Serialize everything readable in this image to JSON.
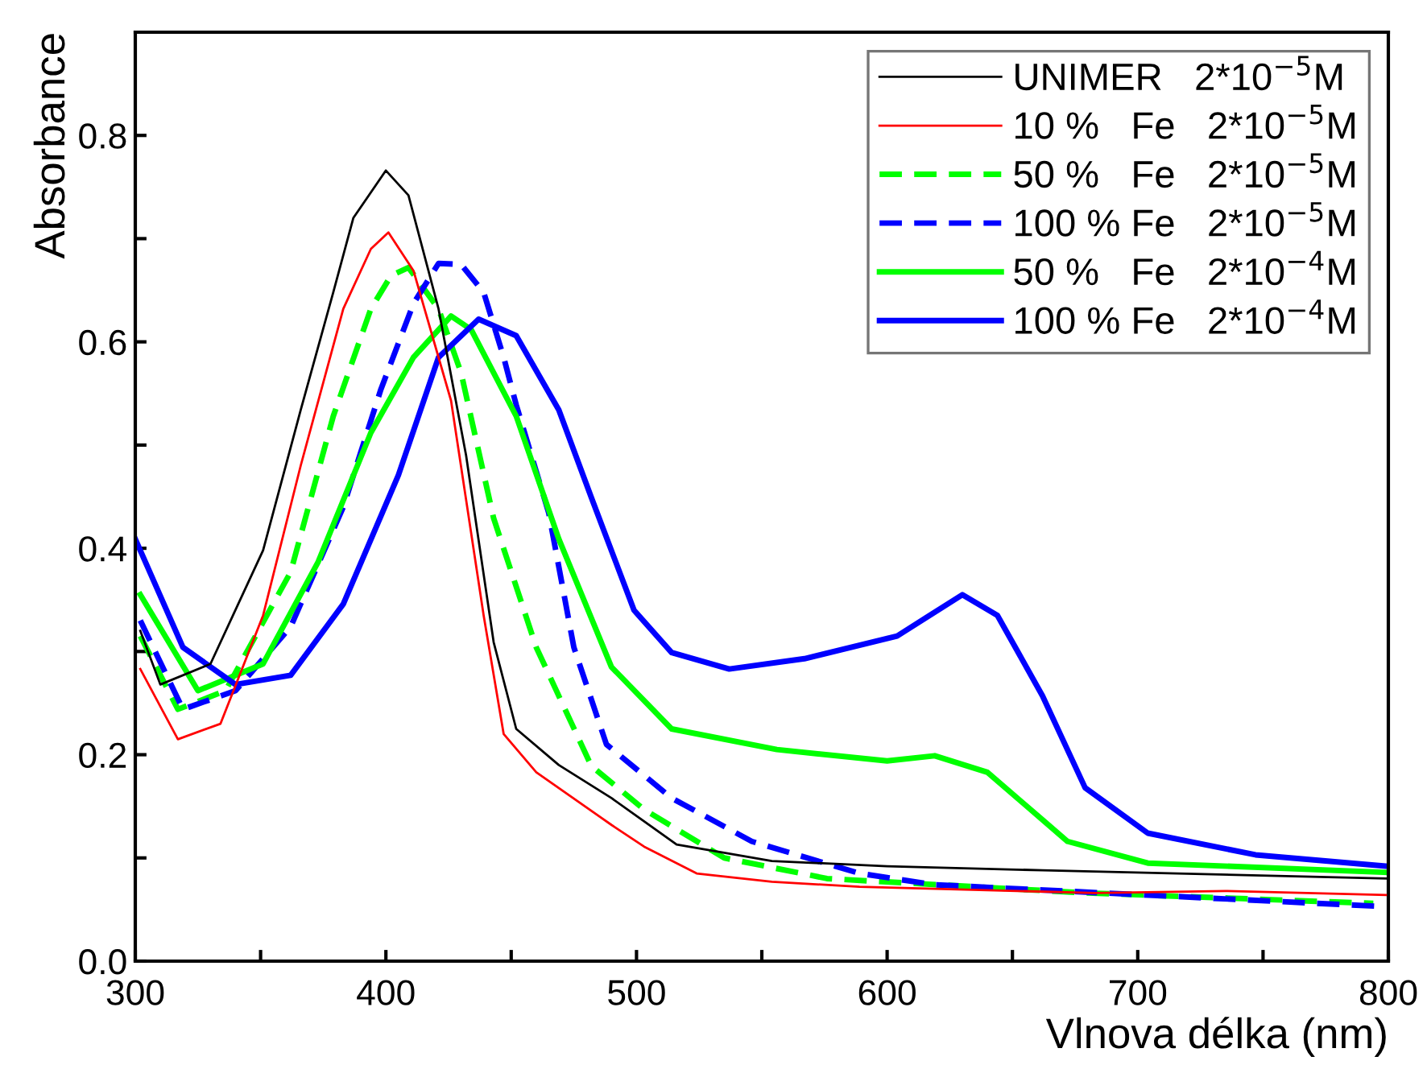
{
  "chart_data": {
    "type": "line",
    "xlabel": "Vlnova délka (nm)",
    "ylabel": "Absorbance",
    "xlim": [
      300,
      800
    ],
    "ylim": [
      0,
      0.9
    ],
    "xticks": [
      300,
      {
        "value": 350,
        "label": null
      },
      400,
      {
        "value": 450,
        "label": null
      },
      500,
      {
        "value": 550,
        "label": null
      },
      600,
      {
        "value": 650,
        "label": null
      },
      700,
      {
        "value": 750,
        "label": null
      },
      800
    ],
    "yticks": [
      {
        "value": 0,
        "label": "0.0"
      },
      {
        "value": 0.1,
        "label": null
      },
      {
        "value": 0.2,
        "label": "0.2"
      },
      {
        "value": 0.3,
        "label": null
      },
      {
        "value": 0.4,
        "label": "0.4"
      },
      {
        "value": 0.5,
        "label": null
      },
      {
        "value": 0.6,
        "label": "0.6"
      },
      {
        "value": 0.7,
        "label": null
      },
      {
        "value": 0.8,
        "label": "0.8"
      }
    ],
    "grid": false,
    "legend": "top right",
    "marker": "none",
    "series": [
      {
        "name": "UNIMER   2*10$^{−5}$M",
        "color": "#000000",
        "line_style": "solid",
        "x": [
          302,
          310,
          330,
          351,
          366,
          379,
          387,
          400,
          409,
          421,
          432,
          443,
          452,
          469,
          490,
          516,
          554,
          600,
          662,
          799
        ],
        "values": [
          0.32,
          0.268,
          0.288,
          0.398,
          0.534,
          0.648,
          0.72,
          0.766,
          0.742,
          0.632,
          0.49,
          0.309,
          0.225,
          0.19,
          0.158,
          0.113,
          0.097,
          0.092,
          0.088,
          0.08
        ]
      },
      {
        "name": "10 %   Fe   2*10$^{−5}$M",
        "color": "#ff0000",
        "line_style": "solid",
        "x": [
          302,
          317,
          334,
          351,
          366,
          383,
          394,
          401,
          411,
          426,
          439,
          447,
          460,
          490,
          503,
          524,
          554,
          589,
          683,
          735,
          799
        ],
        "values": [
          0.283,
          0.215,
          0.23,
          0.335,
          0.48,
          0.632,
          0.69,
          0.706,
          0.669,
          0.543,
          0.335,
          0.22,
          0.183,
          0.132,
          0.111,
          0.085,
          0.077,
          0.072,
          0.066,
          0.068,
          0.064
        ]
      },
      {
        "name": "50 %   Fe   2*10$^{−5}$M",
        "color": "#00ff00",
        "line_style": "dashed",
        "x": [
          302,
          317,
          336,
          362,
          379,
          394,
          402,
          409,
          421,
          430,
          443,
          460,
          482,
          503,
          535,
          576,
          680,
          794
        ],
        "values": [
          0.315,
          0.244,
          0.262,
          0.377,
          0.528,
          0.632,
          0.664,
          0.672,
          0.632,
          0.57,
          0.429,
          0.304,
          0.189,
          0.147,
          0.1,
          0.08,
          0.066,
          0.056
        ]
      },
      {
        "name": "100 % Fe   2*10$^{−5}$M",
        "color": "#0000ff",
        "line_style": "dashed",
        "x": [
          302,
          319,
          340,
          362,
          383,
          398,
          411,
          421,
          430,
          439,
          447,
          452,
          465,
          475,
          488,
          514,
          546,
          589,
          619,
          797
        ],
        "values": [
          0.33,
          0.244,
          0.262,
          0.324,
          0.44,
          0.554,
          0.637,
          0.676,
          0.675,
          0.648,
          0.585,
          0.539,
          0.434,
          0.304,
          0.21,
          0.158,
          0.116,
          0.085,
          0.074,
          0.053
        ]
      },
      {
        "name": "50 %   Fe   2*10$^{−4}$M",
        "color": "#00ff00",
        "line_style": "solid",
        "x": [
          302,
          325,
          351,
          373,
          394,
          411,
          426,
          434,
          452,
          469,
          490,
          514,
          556,
          600,
          619,
          640,
          672,
          704,
          799
        ],
        "values": [
          0.355,
          0.262,
          0.288,
          0.387,
          0.512,
          0.585,
          0.625,
          0.612,
          0.528,
          0.409,
          0.285,
          0.225,
          0.205,
          0.194,
          0.199,
          0.183,
          0.116,
          0.095,
          0.086
        ]
      },
      {
        "name": "100 % Fe   2*10$^{−4}$M",
        "color": "#0000ff",
        "line_style": "solid",
        "x": [
          300,
          319,
          340,
          362,
          383,
          405,
          421,
          437,
          452,
          469,
          482,
          499,
          514,
          537,
          567,
          604,
          630,
          644,
          662,
          679,
          704,
          747,
          799
        ],
        "values": [
          0.409,
          0.304,
          0.268,
          0.277,
          0.346,
          0.471,
          0.585,
          0.622,
          0.606,
          0.534,
          0.449,
          0.34,
          0.299,
          0.283,
          0.293,
          0.315,
          0.355,
          0.335,
          0.257,
          0.168,
          0.124,
          0.103,
          0.092
        ]
      }
    ]
  }
}
